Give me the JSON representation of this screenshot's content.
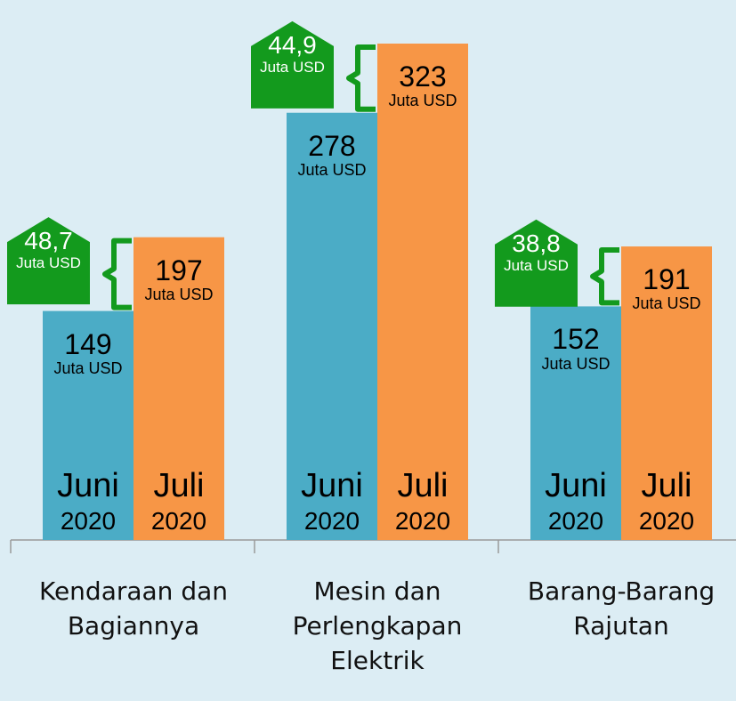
{
  "chart_data": {
    "type": "bar",
    "categories": [
      "Kendaraan dan Bagiannya",
      "Mesin dan Perlengkapan Elektrik",
      "Barang-Barang Rajutan"
    ],
    "series": [
      {
        "name": "Juni 2020",
        "color": "#4bacc6",
        "values": [
          149,
          278,
          152
        ],
        "value_labels": [
          "149 Juta USD",
          "278 Juta USD",
          "152 Juta USD"
        ]
      },
      {
        "name": "Juli 2020",
        "color": "#f79646",
        "values": [
          197,
          323,
          191
        ],
        "value_labels": [
          "197 Juta USD",
          "323 Juta USD",
          "191 Juta USD"
        ]
      }
    ],
    "differences": {
      "color": "#139a1d",
      "values": [
        48.7,
        44.9,
        38.8
      ],
      "value_labels": [
        "48,7 Juta USD",
        "44,9 Juta USD",
        "38,8 Juta USD"
      ]
    }
  }
}
